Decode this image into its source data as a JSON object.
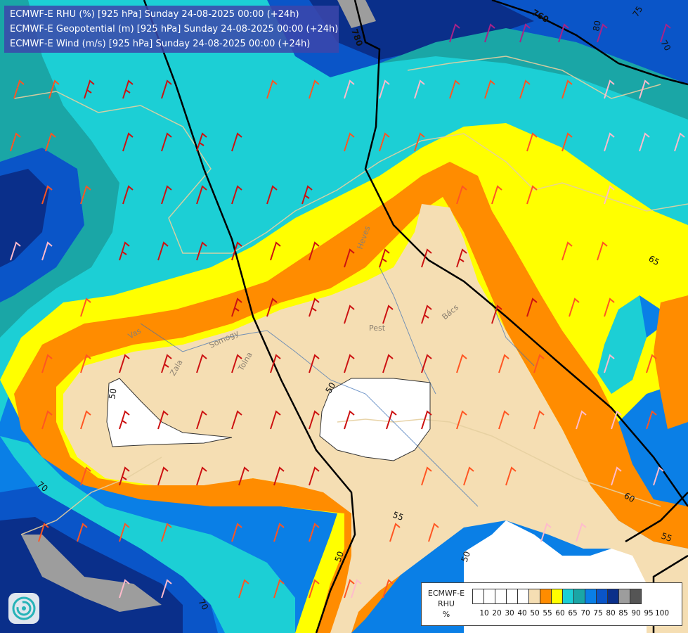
{
  "header": {
    "line1": "ECMWF-E RHU (%) [925 hPa] Sunday 24-08-2025 00:00 (+24h)",
    "line2": "ECMWF-E Geopotential (m) [925 hPa] Sunday 24-08-2025 00:00 (+24h)",
    "line3": "ECMWF-E Wind (m/s) [925 hPa] Sunday 24-08-2025 00:00 (+24h)"
  },
  "legend": {
    "title_line1": "ECMWF-E",
    "title_line2": "RHU",
    "title_line3": "%",
    "ticks": [
      "10",
      "20",
      "30",
      "40",
      "50",
      "55",
      "60",
      "65",
      "70",
      "75",
      "80",
      "85",
      "90",
      "95",
      "100"
    ],
    "colors": [
      "#ffffff",
      "#ffffff",
      "#ffffff",
      "#ffffff",
      "#ffffff",
      "#f5deb3",
      "#ff8c00",
      "#ffff00",
      "#1ccfd5",
      "#1aa6a6",
      "#0a7fe6",
      "#0a55c8",
      "#0a2f8a",
      "#9d9d9d",
      "#555555"
    ]
  },
  "contour_labels": {
    "rh": [
      "50",
      "50",
      "50",
      "50",
      "55",
      "55",
      "60",
      "65",
      "70",
      "70",
      "70",
      "75",
      "80"
    ],
    "geopotential": [
      "780",
      "760"
    ]
  },
  "places": [
    "Pest",
    "Bács",
    "Heves",
    "Somogy",
    "Tolna",
    "Vas",
    "Zala"
  ],
  "icons": {
    "logo": "ecmwf-swirl-logo"
  }
}
